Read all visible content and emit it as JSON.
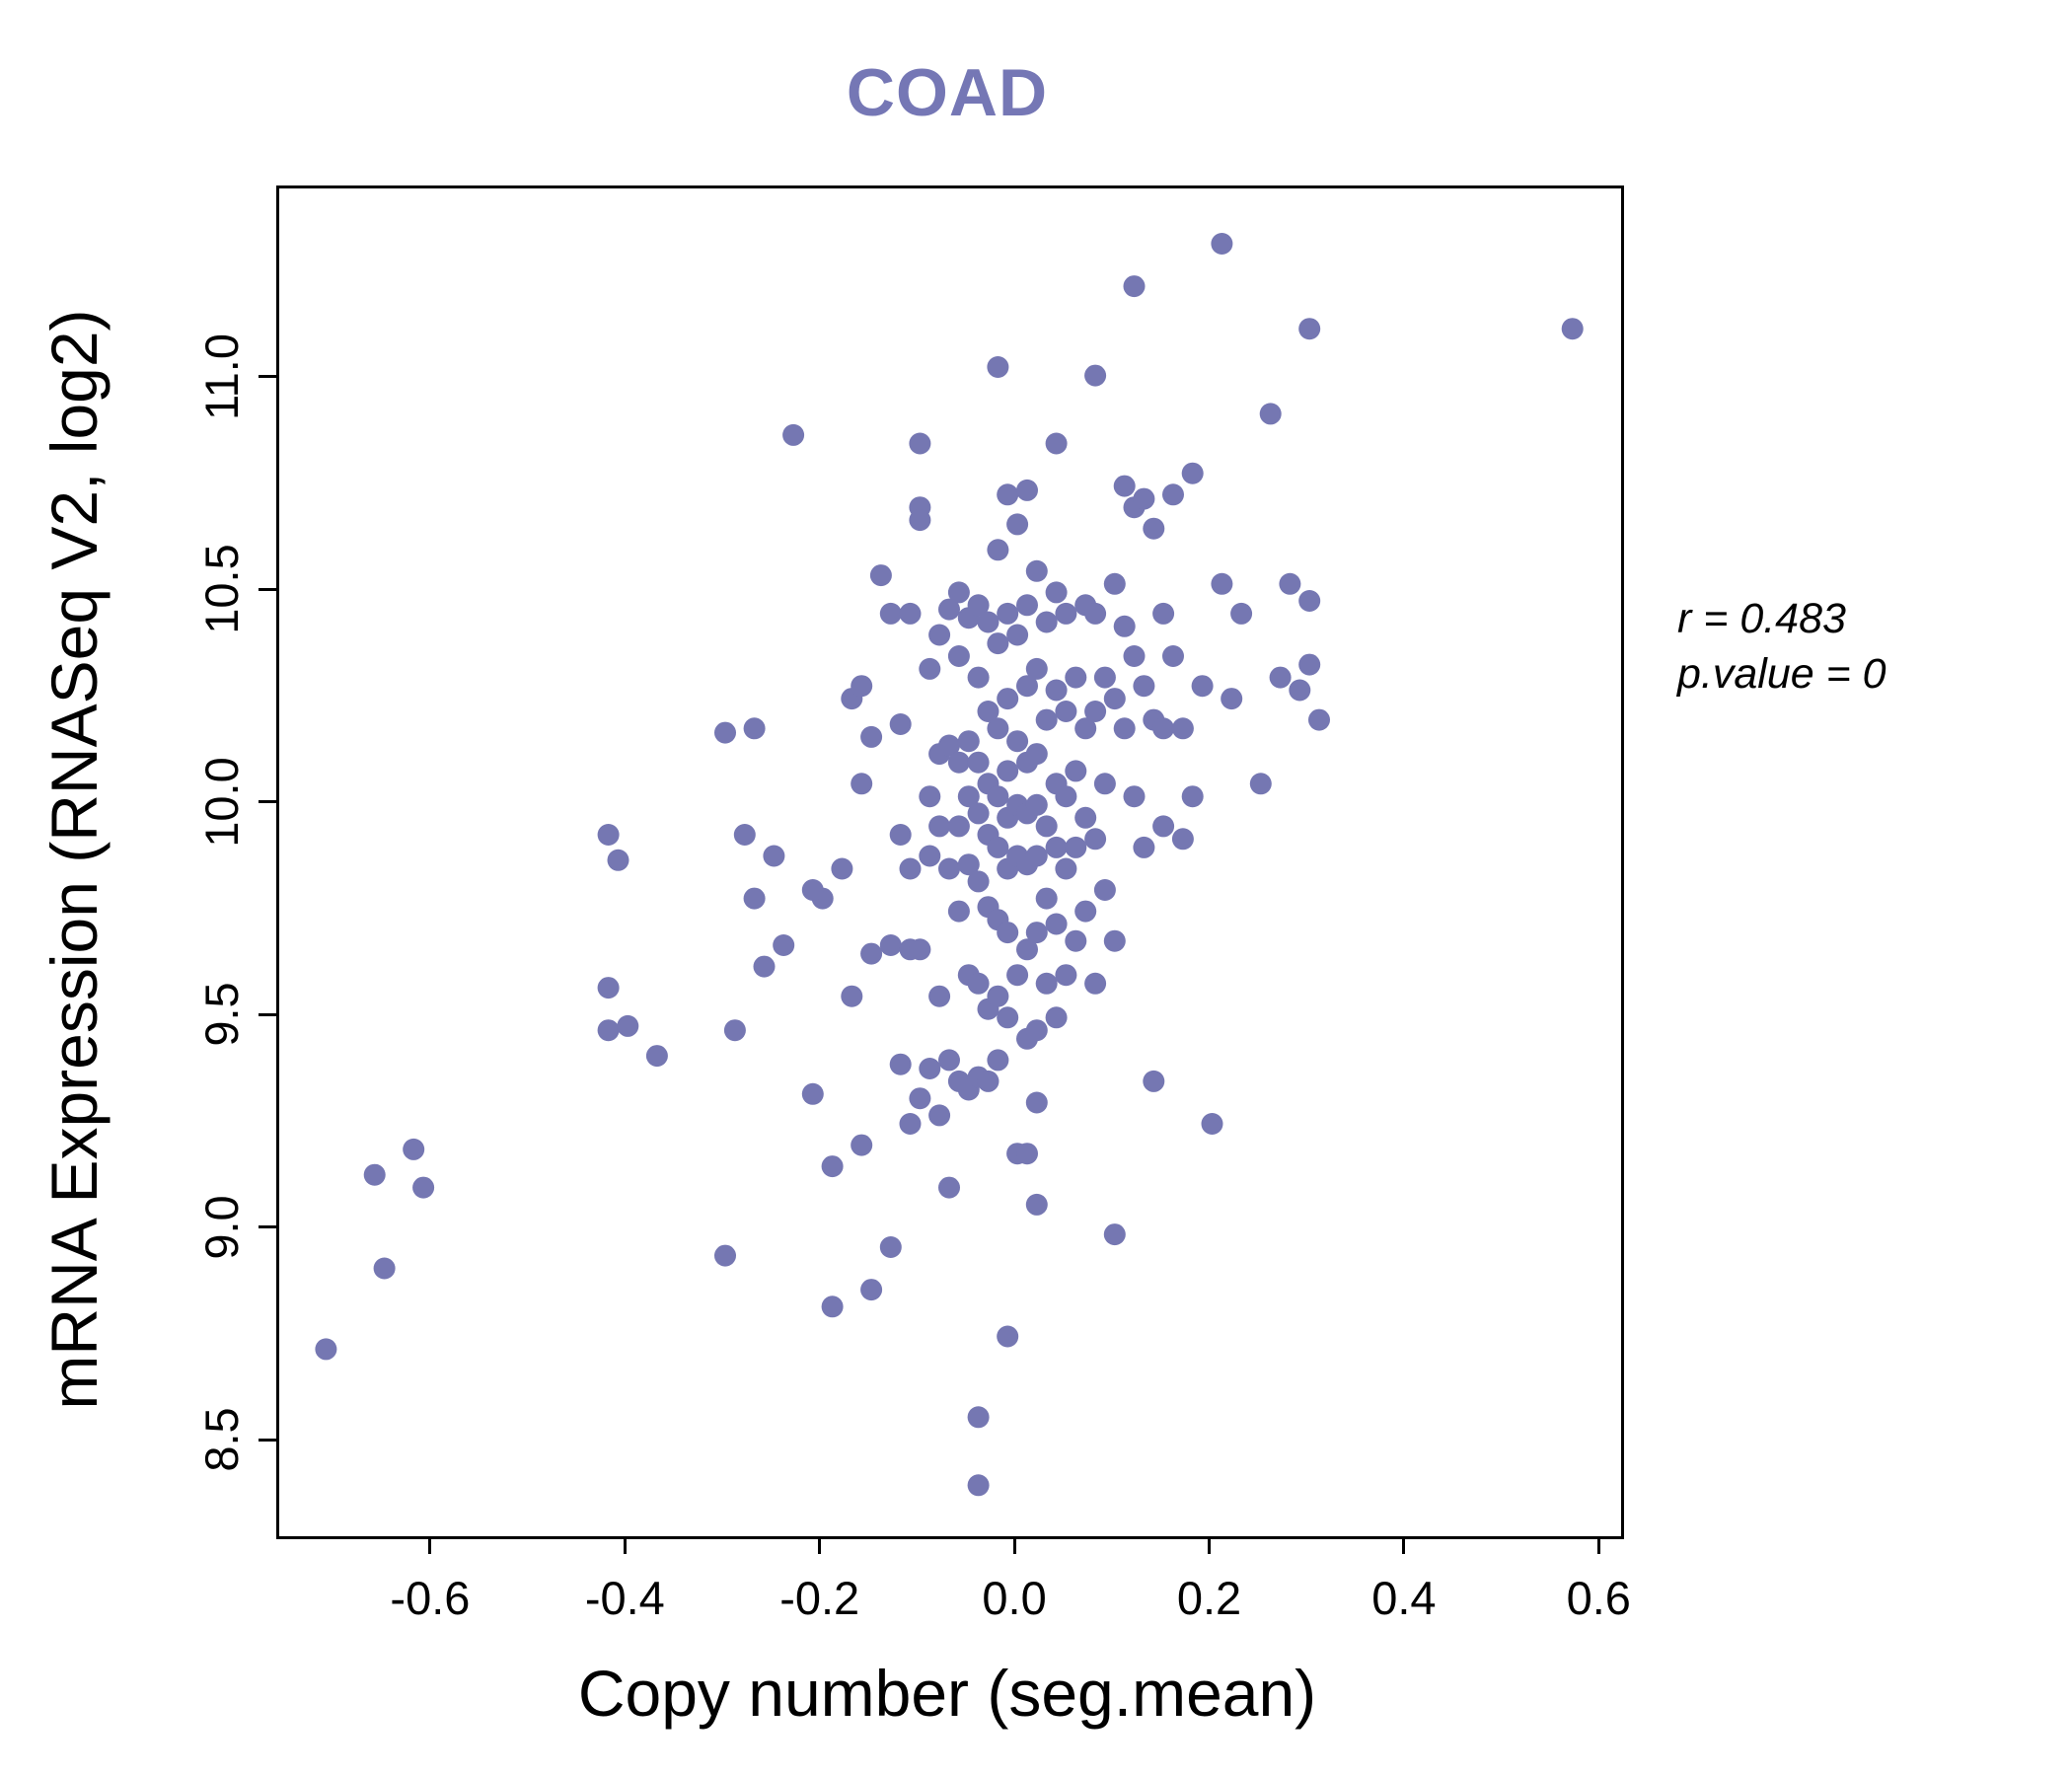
{
  "title": "COAD",
  "accent_color": "#7577b5",
  "annotation": {
    "line1": "r = 0.483",
    "line2": "p.value = 0"
  },
  "chart_data": {
    "type": "scatter",
    "title": "COAD",
    "xlabel": "Copy number (seg.mean)",
    "ylabel": "mRNA Expression (RNASeq V2, log2)",
    "xlim": [
      -0.758,
      0.62
    ],
    "ylim": [
      8.28,
      11.45
    ],
    "xticks": [
      -0.6,
      -0.4,
      -0.2,
      0.0,
      0.2,
      0.4,
      0.6
    ],
    "xtick_labels": [
      "-0.6",
      "-0.4",
      "-0.2",
      "0.0",
      "0.2",
      "0.4",
      "0.6"
    ],
    "yticks": [
      8.5,
      9.0,
      9.5,
      10.0,
      10.5,
      11.0
    ],
    "ytick_labels": [
      "8.5",
      "9.0",
      "9.5",
      "10.0",
      "10.5",
      "11.0"
    ],
    "grid": false,
    "legend": null,
    "point_color": "#7577b2",
    "point_radius": 11,
    "correlation": {
      "r": 0.483,
      "p_value": 0
    },
    "points": [
      [
        -0.71,
        8.72
      ],
      [
        -0.66,
        9.13
      ],
      [
        -0.65,
        8.91
      ],
      [
        -0.62,
        9.19
      ],
      [
        -0.61,
        9.1
      ],
      [
        -0.42,
        9.93
      ],
      [
        -0.41,
        9.87
      ],
      [
        -0.42,
        9.57
      ],
      [
        -0.42,
        9.47
      ],
      [
        -0.4,
        9.48
      ],
      [
        -0.37,
        9.41
      ],
      [
        -0.3,
        8.94
      ],
      [
        -0.3,
        10.17
      ],
      [
        -0.27,
        10.18
      ],
      [
        -0.28,
        9.93
      ],
      [
        -0.27,
        9.78
      ],
      [
        -0.26,
        9.62
      ],
      [
        -0.29,
        9.47
      ],
      [
        -0.23,
        10.87
      ],
      [
        -0.25,
        9.88
      ],
      [
        -0.24,
        9.67
      ],
      [
        -0.21,
        9.32
      ],
      [
        -0.19,
        8.82
      ],
      [
        -0.19,
        9.15
      ],
      [
        -0.2,
        9.78
      ],
      [
        -0.21,
        9.8
      ],
      [
        -0.18,
        9.85
      ],
      [
        -0.17,
        10.25
      ],
      [
        -0.16,
        10.28
      ],
      [
        -0.17,
        9.55
      ],
      [
        -0.16,
        9.2
      ],
      [
        -0.15,
        8.86
      ],
      [
        -0.15,
        9.65
      ],
      [
        -0.16,
        10.05
      ],
      [
        -0.15,
        10.16
      ],
      [
        -0.14,
        10.54
      ],
      [
        -0.13,
        10.45
      ],
      [
        -0.13,
        9.67
      ],
      [
        -0.13,
        8.96
      ],
      [
        -0.12,
        9.39
      ],
      [
        -0.12,
        9.93
      ],
      [
        -0.12,
        10.19
      ],
      [
        -0.11,
        10.45
      ],
      [
        -0.11,
        9.85
      ],
      [
        -0.11,
        9.66
      ],
      [
        -0.1,
        10.85
      ],
      [
        -0.1,
        10.7
      ],
      [
        -0.1,
        10.67
      ],
      [
        -0.11,
        9.25
      ],
      [
        -0.1,
        9.31
      ],
      [
        -0.1,
        9.66
      ],
      [
        -0.09,
        10.02
      ],
      [
        -0.09,
        9.88
      ],
      [
        -0.09,
        9.38
      ],
      [
        -0.09,
        10.32
      ],
      [
        -0.08,
        10.4
      ],
      [
        -0.08,
        10.12
      ],
      [
        -0.08,
        9.95
      ],
      [
        -0.08,
        9.55
      ],
      [
        -0.08,
        9.27
      ],
      [
        -0.07,
        10.46
      ],
      [
        -0.07,
        10.14
      ],
      [
        -0.07,
        9.85
      ],
      [
        -0.07,
        9.4
      ],
      [
        -0.07,
        9.1
      ],
      [
        -0.06,
        10.5
      ],
      [
        -0.06,
        10.35
      ],
      [
        -0.06,
        10.1
      ],
      [
        -0.06,
        9.95
      ],
      [
        -0.06,
        9.75
      ],
      [
        -0.06,
        9.35
      ],
      [
        -0.05,
        10.44
      ],
      [
        -0.05,
        10.15
      ],
      [
        -0.05,
        10.02
      ],
      [
        -0.05,
        9.86
      ],
      [
        -0.05,
        9.6
      ],
      [
        -0.05,
        9.33
      ],
      [
        -0.04,
        10.47
      ],
      [
        -0.04,
        10.3
      ],
      [
        -0.04,
        10.1
      ],
      [
        -0.04,
        9.98
      ],
      [
        -0.04,
        9.82
      ],
      [
        -0.04,
        9.58
      ],
      [
        -0.04,
        9.36
      ],
      [
        -0.04,
        8.4
      ],
      [
        -0.04,
        8.56
      ],
      [
        -0.03,
        10.43
      ],
      [
        -0.03,
        10.22
      ],
      [
        -0.03,
        10.05
      ],
      [
        -0.03,
        9.93
      ],
      [
        -0.03,
        9.76
      ],
      [
        -0.03,
        9.52
      ],
      [
        -0.03,
        9.35
      ],
      [
        -0.02,
        11.03
      ],
      [
        -0.02,
        10.6
      ],
      [
        -0.02,
        10.38
      ],
      [
        -0.02,
        10.18
      ],
      [
        -0.02,
        10.02
      ],
      [
        -0.02,
        9.9
      ],
      [
        -0.02,
        9.73
      ],
      [
        -0.02,
        9.55
      ],
      [
        -0.02,
        9.4
      ],
      [
        -0.01,
        10.73
      ],
      [
        -0.01,
        10.45
      ],
      [
        -0.01,
        10.25
      ],
      [
        -0.01,
        10.08
      ],
      [
        -0.01,
        9.97
      ],
      [
        -0.01,
        9.85
      ],
      [
        -0.01,
        9.7
      ],
      [
        -0.01,
        9.5
      ],
      [
        -0.01,
        8.75
      ],
      [
        0.0,
        10.66
      ],
      [
        0.0,
        10.4
      ],
      [
        0.0,
        10.15
      ],
      [
        0.0,
        10.0
      ],
      [
        0.0,
        9.88
      ],
      [
        0.0,
        9.18
      ],
      [
        0.0,
        9.6
      ],
      [
        0.01,
        10.74
      ],
      [
        0.01,
        10.47
      ],
      [
        0.01,
        10.28
      ],
      [
        0.01,
        10.1
      ],
      [
        0.01,
        9.98
      ],
      [
        0.01,
        9.86
      ],
      [
        0.01,
        9.66
      ],
      [
        0.01,
        9.45
      ],
      [
        0.01,
        9.18
      ],
      [
        0.02,
        10.55
      ],
      [
        0.02,
        10.32
      ],
      [
        0.02,
        10.12
      ],
      [
        0.02,
        10.0
      ],
      [
        0.02,
        9.88
      ],
      [
        0.02,
        9.7
      ],
      [
        0.02,
        9.47
      ],
      [
        0.02,
        9.3
      ],
      [
        0.02,
        9.06
      ],
      [
        0.03,
        10.43
      ],
      [
        0.03,
        10.2
      ],
      [
        0.03,
        9.95
      ],
      [
        0.03,
        9.78
      ],
      [
        0.03,
        9.58
      ],
      [
        0.04,
        10.85
      ],
      [
        0.04,
        10.5
      ],
      [
        0.04,
        10.27
      ],
      [
        0.04,
        10.05
      ],
      [
        0.04,
        9.9
      ],
      [
        0.04,
        9.72
      ],
      [
        0.04,
        9.5
      ],
      [
        0.05,
        10.45
      ],
      [
        0.05,
        10.22
      ],
      [
        0.05,
        10.02
      ],
      [
        0.05,
        9.85
      ],
      [
        0.05,
        9.6
      ],
      [
        0.06,
        10.3
      ],
      [
        0.06,
        10.08
      ],
      [
        0.06,
        9.9
      ],
      [
        0.06,
        9.68
      ],
      [
        0.07,
        10.47
      ],
      [
        0.07,
        10.18
      ],
      [
        0.07,
        9.97
      ],
      [
        0.07,
        9.75
      ],
      [
        0.08,
        11.01
      ],
      [
        0.08,
        10.45
      ],
      [
        0.08,
        10.22
      ],
      [
        0.08,
        9.92
      ],
      [
        0.08,
        9.58
      ],
      [
        0.09,
        10.3
      ],
      [
        0.09,
        10.05
      ],
      [
        0.09,
        9.8
      ],
      [
        0.1,
        10.52
      ],
      [
        0.1,
        10.25
      ],
      [
        0.1,
        9.68
      ],
      [
        0.1,
        8.99
      ],
      [
        0.11,
        10.75
      ],
      [
        0.11,
        10.42
      ],
      [
        0.11,
        10.18
      ],
      [
        0.12,
        11.22
      ],
      [
        0.12,
        10.7
      ],
      [
        0.12,
        10.35
      ],
      [
        0.12,
        10.02
      ],
      [
        0.13,
        10.72
      ],
      [
        0.13,
        10.28
      ],
      [
        0.13,
        9.9
      ],
      [
        0.14,
        10.65
      ],
      [
        0.14,
        10.2
      ],
      [
        0.14,
        9.35
      ],
      [
        0.15,
        10.45
      ],
      [
        0.15,
        10.18
      ],
      [
        0.15,
        9.95
      ],
      [
        0.16,
        10.73
      ],
      [
        0.16,
        10.35
      ],
      [
        0.17,
        10.18
      ],
      [
        0.17,
        9.92
      ],
      [
        0.18,
        10.78
      ],
      [
        0.18,
        10.02
      ],
      [
        0.19,
        10.28
      ],
      [
        0.2,
        9.25
      ],
      [
        0.21,
        11.32
      ],
      [
        0.21,
        10.52
      ],
      [
        0.22,
        10.25
      ],
      [
        0.23,
        10.45
      ],
      [
        0.26,
        10.92
      ],
      [
        0.28,
        10.52
      ],
      [
        0.3,
        11.12
      ],
      [
        0.3,
        10.48
      ],
      [
        0.3,
        10.33
      ],
      [
        0.31,
        10.2
      ],
      [
        0.57,
        11.12
      ],
      [
        0.25,
        10.05
      ],
      [
        0.27,
        10.3
      ],
      [
        0.29,
        10.27
      ]
    ]
  }
}
